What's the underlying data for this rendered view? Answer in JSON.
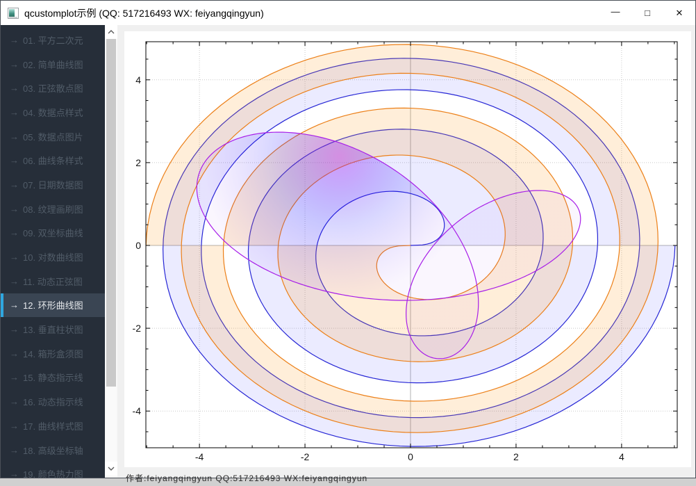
{
  "window": {
    "title": "qcustomplot示例 (QQ: 517216493 WX: feiyangqingyun)"
  },
  "icons": {
    "minimize": "—",
    "maximize": "□",
    "close": "✕",
    "item_arrow": "→"
  },
  "sidebar": {
    "items": [
      {
        "label": "01. 平方二次元",
        "selected": false
      },
      {
        "label": "02. 简单曲线图",
        "selected": false
      },
      {
        "label": "03. 正弦散点图",
        "selected": false
      },
      {
        "label": "04. 数据点样式",
        "selected": false
      },
      {
        "label": "05. 数据点图片",
        "selected": false
      },
      {
        "label": "06. 曲线条样式",
        "selected": false
      },
      {
        "label": "07. 日期数据图",
        "selected": false
      },
      {
        "label": "08. 纹理画刷图",
        "selected": false
      },
      {
        "label": "09. 双坐标曲线",
        "selected": false
      },
      {
        "label": "10. 对数曲线图",
        "selected": false
      },
      {
        "label": "11. 动态正弦图",
        "selected": false
      },
      {
        "label": "12. 环形曲线图",
        "selected": true
      },
      {
        "label": "13. 垂直柱状图",
        "selected": false
      },
      {
        "label": "14. 箱形盒须图",
        "selected": false
      },
      {
        "label": "15. 静态指示线",
        "selected": false
      },
      {
        "label": "16. 动态指示线",
        "selected": false
      },
      {
        "label": "17. 曲线样式图",
        "selected": false
      },
      {
        "label": "18. 高级坐标轴",
        "selected": false
      },
      {
        "label": "19. 颜色热力图",
        "selected": false
      }
    ],
    "selected_accent_color": "#2fa7e0",
    "background": "#262e39"
  },
  "footer": {
    "clipped_text": "作者:feiyangqingyun QQ:517216493 WX:feiyangqingyun"
  },
  "chart_data": {
    "type": "line",
    "subtype": "parametric-curves",
    "title": "",
    "xlabel": "",
    "ylabel": "",
    "x_range": [
      -5.03,
      5.05
    ],
    "y_range": [
      -4.88,
      4.93
    ],
    "x_ticks": [
      -4,
      -2,
      0,
      2,
      4
    ],
    "y_ticks": [
      -4,
      -2,
      0,
      2,
      4
    ],
    "minor_tick_step": 0.5,
    "grid": {
      "major_style": "dotted",
      "dotted_color": "#c8c8c8",
      "zero_line_color": "#b2b2b2",
      "background": "#ffffff",
      "border_color": "#000000"
    },
    "series": [
      {
        "name": "fermat-spiral-blue",
        "kind": "fermat_spiral",
        "mirrored": false,
        "formula": "x=sqrt(t)*cos(t), y=sqrt(t)*sin(t)",
        "t_range": [
          0,
          25.1327
        ],
        "points": 500,
        "stroke": "#2525d5",
        "fill": "rgba(0,0,255,0.08)",
        "fill_rule": "evenodd"
      },
      {
        "name": "fermat-spiral-orange",
        "kind": "fermat_spiral",
        "mirrored": true,
        "formula": "x=-sqrt(t)*cos(t), y=-sqrt(t)*sin(t)",
        "t_range": [
          0,
          25.1327
        ],
        "points": 500,
        "stroke": "#ec7f17",
        "fill": "rgba(255,150,20,0.16)",
        "fill_rule": "evenodd"
      },
      {
        "name": "deltoid-radial",
        "kind": "deltoid",
        "formula": "x=2cos(2t)+cos(t)+2sin(t), y=2sin(2t)-sin(t)",
        "t_range": [
          0,
          6.28319
        ],
        "points": 500,
        "stroke": "#a81ee8",
        "fill_gradient": {
          "cx": 310,
          "cy": 180,
          "r": 200,
          "stops": [
            [
              0,
              "rgba(170,20,240,0.39)"
            ],
            [
              0.5,
              "rgba(20,10,255,0.16)"
            ],
            [
              1,
              "rgba(120,20,240,0.04)"
            ]
          ]
        }
      }
    ]
  }
}
